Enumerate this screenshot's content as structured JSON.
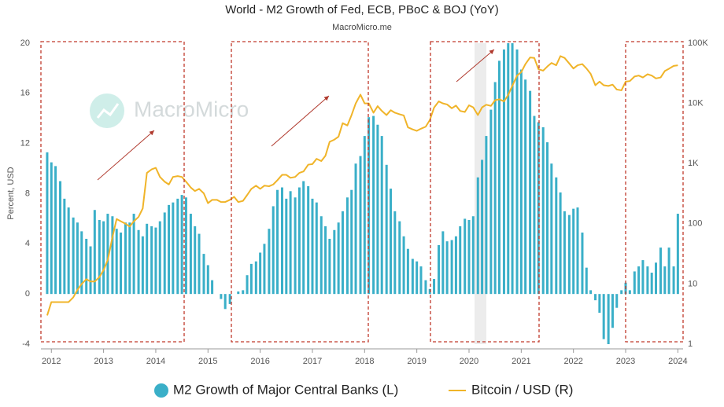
{
  "chart_data": {
    "type": "combo",
    "title": "World - M2 Growth of Fed, ECB, PBoC & BOJ (YoY)",
    "subtitle": "MacroMicro.me",
    "watermark": "MacroMicro",
    "ylabel": "Percent, USD",
    "xlim": [
      2011.8,
      2024.1
    ],
    "xticks": [
      2012,
      2013,
      2014,
      2015,
      2016,
      2017,
      2018,
      2019,
      2020,
      2021,
      2022,
      2023,
      2024
    ],
    "ylim": [
      -4,
      20
    ],
    "yticks": [
      -4,
      0,
      4,
      8,
      12,
      16,
      20
    ],
    "y2lim": [
      1,
      100000
    ],
    "y2scale": "log",
    "y2ticks": [
      1,
      10,
      100,
      {
        "value": 1000,
        "label": "1K"
      },
      {
        "value": 10000,
        "label": "10K"
      },
      {
        "value": 100000,
        "label": "100K"
      }
    ],
    "x": [
      2011.92,
      2012.0,
      2012.08,
      2012.17,
      2012.25,
      2012.33,
      2012.42,
      2012.5,
      2012.58,
      2012.67,
      2012.75,
      2012.83,
      2012.92,
      2013.0,
      2013.08,
      2013.17,
      2013.25,
      2013.33,
      2013.42,
      2013.5,
      2013.58,
      2013.67,
      2013.75,
      2013.83,
      2013.92,
      2014.0,
      2014.08,
      2014.17,
      2014.25,
      2014.33,
      2014.42,
      2014.5,
      2014.58,
      2014.67,
      2014.75,
      2014.83,
      2014.92,
      2015.0,
      2015.08,
      2015.17,
      2015.25,
      2015.33,
      2015.42,
      2015.5,
      2015.58,
      2015.67,
      2015.75,
      2015.83,
      2015.92,
      2016.0,
      2016.08,
      2016.17,
      2016.25,
      2016.33,
      2016.42,
      2016.5,
      2016.58,
      2016.67,
      2016.75,
      2016.83,
      2016.92,
      2017.0,
      2017.08,
      2017.17,
      2017.25,
      2017.33,
      2017.42,
      2017.5,
      2017.58,
      2017.67,
      2017.75,
      2017.83,
      2017.92,
      2018.0,
      2018.08,
      2018.17,
      2018.25,
      2018.33,
      2018.42,
      2018.5,
      2018.58,
      2018.67,
      2018.75,
      2018.83,
      2018.92,
      2019.0,
      2019.08,
      2019.17,
      2019.25,
      2019.33,
      2019.42,
      2019.5,
      2019.58,
      2019.67,
      2019.75,
      2019.83,
      2019.92,
      2020.0,
      2020.08,
      2020.17,
      2020.25,
      2020.33,
      2020.42,
      2020.5,
      2020.58,
      2020.67,
      2020.75,
      2020.83,
      2020.92,
      2021.0,
      2021.08,
      2021.17,
      2021.25,
      2021.33,
      2021.42,
      2021.5,
      2021.58,
      2021.67,
      2021.75,
      2021.83,
      2021.92,
      2022.0,
      2022.08,
      2022.17,
      2022.25,
      2022.33,
      2022.42,
      2022.5,
      2022.58,
      2022.67,
      2022.75,
      2022.83,
      2022.92,
      2023.0,
      2023.08,
      2023.17,
      2023.25,
      2023.33,
      2023.42,
      2023.5,
      2023.58,
      2023.67,
      2023.75,
      2023.83,
      2023.92,
      2024.0
    ],
    "series": [
      {
        "name": "M2 Growth of Major Central Banks (L)",
        "type": "bar",
        "color": "#3aafc8",
        "values": [
          11.3,
          10.5,
          10.2,
          9.0,
          7.6,
          6.9,
          6.1,
          5.7,
          5.0,
          4.4,
          3.8,
          6.7,
          5.9,
          5.8,
          6.4,
          6.2,
          5.2,
          4.9,
          5.7,
          5.7,
          6.4,
          5.1,
          4.6,
          5.6,
          5.4,
          5.3,
          5.8,
          6.5,
          7.1,
          7.3,
          7.6,
          7.9,
          7.7,
          6.4,
          5.4,
          4.8,
          3.2,
          2.3,
          1.1,
          0,
          -0.4,
          -1.2,
          -0.8,
          0,
          0.2,
          0.3,
          1.5,
          2.4,
          2.6,
          3.3,
          4.0,
          5.2,
          7.0,
          8.3,
          8.5,
          7.6,
          8.2,
          7.7,
          8.5,
          9.0,
          8.6,
          7.6,
          7.3,
          6.2,
          5.4,
          4.4,
          5.1,
          5.7,
          6.6,
          7.7,
          8.3,
          10.4,
          11.0,
          12.6,
          14.1,
          14.2,
          13.5,
          12.6,
          10.3,
          8.4,
          6.6,
          5.8,
          4.6,
          3.6,
          2.8,
          2.6,
          2.2,
          1.1,
          0.4,
          1.2,
          3.9,
          5.0,
          4.2,
          4.3,
          4.6,
          5.4,
          6.0,
          5.9,
          6.2,
          9.3,
          10.7,
          12.6,
          14.7,
          16.9,
          18.6,
          19.5,
          20.0,
          20.0,
          19.5,
          17.9,
          17.1,
          16.2,
          14.2,
          13.7,
          13.3,
          12.1,
          10.4,
          9.3,
          8.1,
          6.6,
          6.3,
          6.8,
          6.9,
          4.9,
          2.1,
          0.3,
          -0.5,
          -1.5,
          -3.6,
          -4.0,
          -2.7,
          -1.1,
          0.3,
          0.9,
          0.3,
          1.8,
          2.2,
          2.7,
          2.2,
          1.7,
          2.5,
          3.7,
          2.2,
          3.7,
          2.2,
          6.4
        ]
      },
      {
        "name": "Bitcoin / USD (R)",
        "type": "line",
        "axis": "y2",
        "color": "#f0b429",
        "values": [
          3,
          5,
          5,
          5,
          5,
          5,
          6,
          8,
          10,
          12,
          11,
          11,
          13,
          17,
          25,
          60,
          120,
          110,
          100,
          90,
          110,
          130,
          180,
          700,
          800,
          850,
          600,
          500,
          450,
          600,
          620,
          600,
          500,
          400,
          350,
          380,
          320,
          220,
          250,
          250,
          230,
          230,
          250,
          280,
          230,
          240,
          300,
          380,
          430,
          380,
          430,
          420,
          450,
          530,
          650,
          650,
          580,
          600,
          700,
          740,
          960,
          980,
          1200,
          1100,
          1350,
          2300,
          2500,
          2800,
          4700,
          4300,
          6400,
          10000,
          14000,
          10000,
          10000,
          7000,
          9000,
          7500,
          6400,
          7700,
          7000,
          6600,
          6300,
          4000,
          3700,
          3500,
          3800,
          4100,
          5300,
          8500,
          10800,
          10000,
          9600,
          8300,
          9200,
          7500,
          7200,
          9300,
          8600,
          6400,
          8600,
          9500,
          9100,
          11300,
          11700,
          10800,
          13800,
          19700,
          29000,
          33000,
          45000,
          58000,
          57000,
          37000,
          35000,
          41000,
          47000,
          43000,
          61000,
          57000,
          46000,
          38000,
          43000,
          45000,
          38000,
          31000,
          20000,
          23000,
          20000,
          19500,
          20500,
          17000,
          16500,
          23000,
          23500,
          28000,
          29000,
          27000,
          30500,
          29000,
          26000,
          27000,
          34500,
          37700,
          42000,
          43000
        ]
      }
    ]
  }
}
